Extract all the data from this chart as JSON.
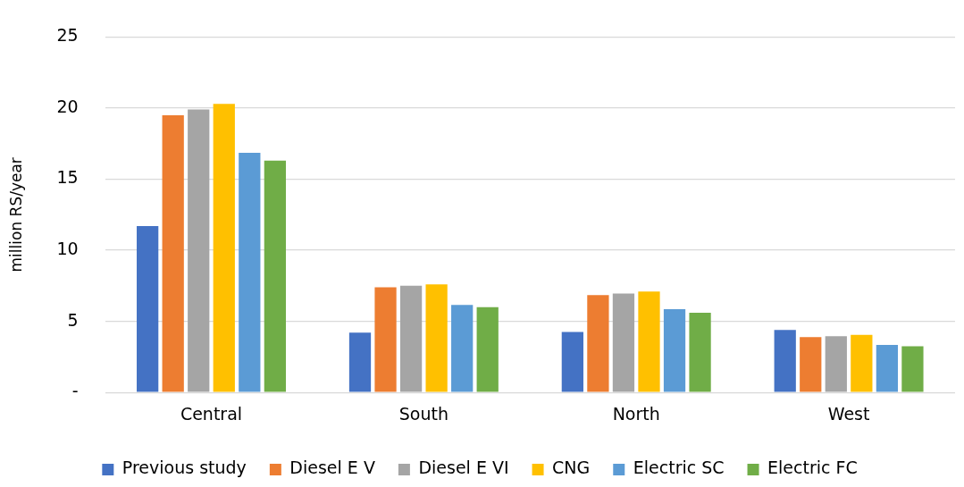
{
  "chart_data": {
    "type": "bar",
    "ylabel": "million RS/year",
    "categories": [
      "Central",
      "South",
      "North",
      "West"
    ],
    "series": [
      {
        "name": "Previous study",
        "color": "#4472c4",
        "values": [
          11.7,
          4.2,
          4.25,
          4.4
        ]
      },
      {
        "name": "Diesel E V",
        "color": "#ed7d31",
        "values": [
          19.5,
          7.4,
          6.85,
          3.9
        ]
      },
      {
        "name": "Diesel E VI",
        "color": "#a5a5a5",
        "values": [
          19.9,
          7.5,
          6.95,
          3.95
        ]
      },
      {
        "name": "CNG",
        "color": "#ffc000",
        "values": [
          20.3,
          7.6,
          7.1,
          4.05
        ]
      },
      {
        "name": "Electric SC",
        "color": "#5b9bd5",
        "values": [
          16.85,
          6.15,
          5.85,
          3.35
        ]
      },
      {
        "name": "Electric FC",
        "color": "#70ad47",
        "values": [
          16.3,
          6.0,
          5.6,
          3.25
        ]
      }
    ],
    "ylim": [
      0,
      25
    ],
    "yticks": [
      {
        "value": 0,
        "label": "-"
      },
      5,
      10,
      15,
      20,
      25
    ],
    "grid": "y",
    "legend": "bottom"
  }
}
